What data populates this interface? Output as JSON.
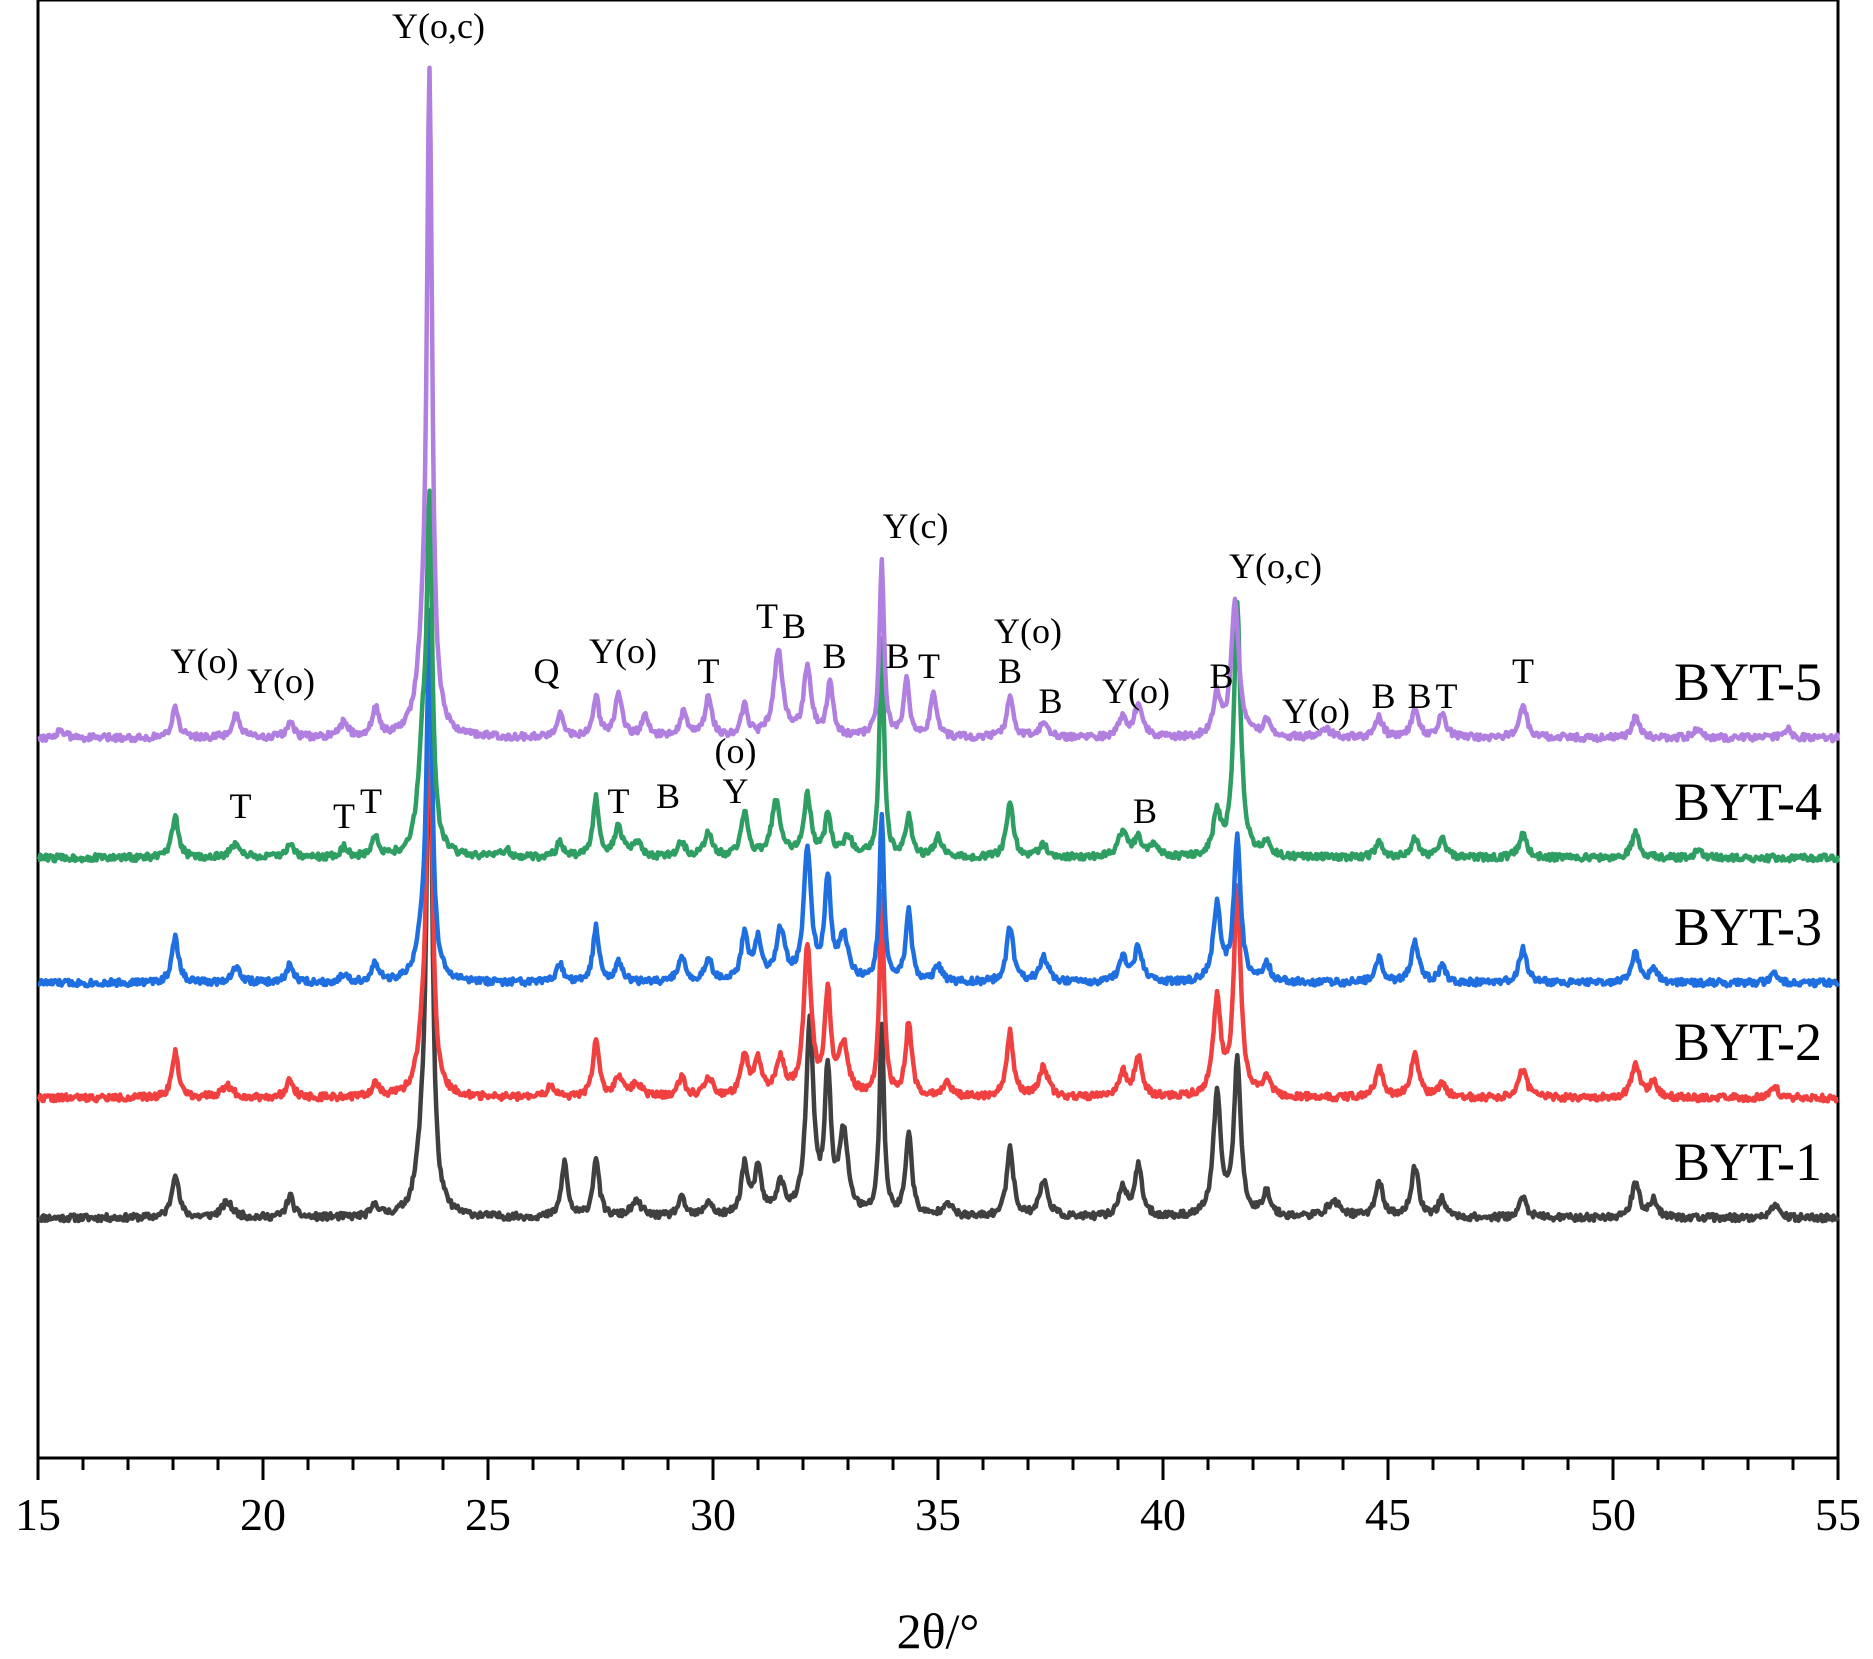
{
  "chart_data": {
    "type": "line",
    "title": "",
    "xlabel": "2θ/°",
    "ylabel": "",
    "xlim": [
      15,
      55
    ],
    "x_ticks": [
      15,
      20,
      25,
      30,
      35,
      40,
      45,
      50,
      55
    ],
    "x_tick_labels": [
      "15",
      "20",
      "25",
      "30",
      "35",
      "40",
      "45",
      "50",
      "55"
    ],
    "y_ticks_shown": false,
    "series": [
      {
        "name": "BYT-1",
        "color": "#404040",
        "baseline": 0,
        "noise_seed": 11,
        "peaks": [
          [
            18.05,
            45,
            0.09
          ],
          [
            19.2,
            15,
            0.15
          ],
          [
            20.6,
            22,
            0.09
          ],
          [
            22.5,
            12,
            0.09
          ],
          [
            23.7,
            530,
            0.07
          ],
          [
            23.55,
            60,
            0.15
          ],
          [
            26.7,
            55,
            0.08
          ],
          [
            27.4,
            60,
            0.08
          ],
          [
            28.3,
            15,
            0.15
          ],
          [
            29.3,
            18,
            0.1
          ],
          [
            29.9,
            15,
            0.1
          ],
          [
            30.7,
            50,
            0.09
          ],
          [
            31.0,
            45,
            0.1
          ],
          [
            31.5,
            30,
            0.12
          ],
          [
            32.15,
            190,
            0.1
          ],
          [
            32.55,
            140,
            0.08
          ],
          [
            32.9,
            80,
            0.12
          ],
          [
            33.75,
            190,
            0.06
          ],
          [
            34.35,
            85,
            0.08
          ],
          [
            35.2,
            15,
            0.12
          ],
          [
            36.6,
            70,
            0.09
          ],
          [
            37.35,
            35,
            0.12
          ],
          [
            39.1,
            30,
            0.1
          ],
          [
            39.45,
            50,
            0.1
          ],
          [
            41.2,
            120,
            0.1
          ],
          [
            41.65,
            155,
            0.09
          ],
          [
            42.3,
            25,
            0.1
          ],
          [
            43.8,
            15,
            0.2
          ],
          [
            44.8,
            35,
            0.1
          ],
          [
            45.6,
            50,
            0.1
          ],
          [
            46.2,
            18,
            0.1
          ],
          [
            48.0,
            20,
            0.1
          ],
          [
            50.5,
            35,
            0.1
          ],
          [
            50.9,
            18,
            0.1
          ],
          [
            53.6,
            12,
            0.1
          ]
        ]
      },
      {
        "name": "BYT-2",
        "color": "#f04040",
        "baseline": 120,
        "noise_seed": 22,
        "peaks": [
          [
            18.05,
            45,
            0.09
          ],
          [
            19.2,
            12,
            0.15
          ],
          [
            20.6,
            20,
            0.09
          ],
          [
            22.5,
            15,
            0.09
          ],
          [
            23.7,
            420,
            0.07
          ],
          [
            23.55,
            40,
            0.15
          ],
          [
            26.4,
            12,
            0.1
          ],
          [
            27.4,
            60,
            0.08
          ],
          [
            27.9,
            20,
            0.1
          ],
          [
            28.3,
            12,
            0.15
          ],
          [
            29.3,
            20,
            0.1
          ],
          [
            29.9,
            20,
            0.1
          ],
          [
            30.7,
            40,
            0.09
          ],
          [
            31.0,
            35,
            0.1
          ],
          [
            31.5,
            35,
            0.12
          ],
          [
            32.1,
            150,
            0.1
          ],
          [
            32.55,
            100,
            0.08
          ],
          [
            32.9,
            50,
            0.12
          ],
          [
            33.75,
            200,
            0.06
          ],
          [
            34.35,
            75,
            0.08
          ],
          [
            35.2,
            15,
            0.12
          ],
          [
            36.6,
            65,
            0.09
          ],
          [
            37.35,
            30,
            0.12
          ],
          [
            39.1,
            25,
            0.1
          ],
          [
            39.45,
            40,
            0.1
          ],
          [
            41.2,
            95,
            0.1
          ],
          [
            41.65,
            210,
            0.09
          ],
          [
            42.3,
            20,
            0.1
          ],
          [
            44.8,
            30,
            0.1
          ],
          [
            45.6,
            45,
            0.1
          ],
          [
            46.2,
            15,
            0.1
          ],
          [
            48.0,
            30,
            0.1
          ],
          [
            50.5,
            35,
            0.1
          ],
          [
            50.9,
            15,
            0.1
          ],
          [
            53.6,
            10,
            0.1
          ]
        ]
      },
      {
        "name": "BYT-3",
        "color": "#1f6fe0",
        "baseline": 235,
        "noise_seed": 33,
        "peaks": [
          [
            18.05,
            45,
            0.09
          ],
          [
            19.4,
            15,
            0.12
          ],
          [
            20.6,
            18,
            0.09
          ],
          [
            21.8,
            8,
            0.1
          ],
          [
            22.5,
            18,
            0.09
          ],
          [
            23.7,
            350,
            0.07
          ],
          [
            23.55,
            40,
            0.15
          ],
          [
            26.6,
            18,
            0.09
          ],
          [
            27.4,
            55,
            0.08
          ],
          [
            27.9,
            20,
            0.1
          ],
          [
            29.3,
            25,
            0.1
          ],
          [
            29.9,
            22,
            0.1
          ],
          [
            30.7,
            45,
            0.09
          ],
          [
            31.0,
            40,
            0.1
          ],
          [
            31.5,
            50,
            0.12
          ],
          [
            32.1,
            130,
            0.1
          ],
          [
            32.55,
            100,
            0.08
          ],
          [
            32.9,
            45,
            0.12
          ],
          [
            33.75,
            165,
            0.06
          ],
          [
            34.35,
            70,
            0.08
          ],
          [
            35.0,
            15,
            0.1
          ],
          [
            36.6,
            55,
            0.09
          ],
          [
            37.35,
            25,
            0.12
          ],
          [
            39.1,
            25,
            0.1
          ],
          [
            39.45,
            35,
            0.1
          ],
          [
            41.2,
            75,
            0.1
          ],
          [
            41.65,
            145,
            0.09
          ],
          [
            42.3,
            18,
            0.1
          ],
          [
            44.8,
            25,
            0.1
          ],
          [
            45.6,
            40,
            0.1
          ],
          [
            46.2,
            15,
            0.1
          ],
          [
            48.0,
            35,
            0.1
          ],
          [
            50.5,
            30,
            0.1
          ],
          [
            50.9,
            12,
            0.1
          ],
          [
            53.6,
            10,
            0.1
          ]
        ]
      },
      {
        "name": "BYT-4",
        "color": "#2e9e63",
        "baseline": 360,
        "noise_seed": 44,
        "peaks": [
          [
            18.05,
            40,
            0.09
          ],
          [
            19.4,
            15,
            0.12
          ],
          [
            20.6,
            15,
            0.09
          ],
          [
            21.8,
            10,
            0.1
          ],
          [
            22.5,
            20,
            0.09
          ],
          [
            23.7,
            330,
            0.07
          ],
          [
            23.55,
            100,
            0.12
          ],
          [
            25.4,
            8,
            0.1
          ],
          [
            26.6,
            15,
            0.09
          ],
          [
            27.4,
            60,
            0.08
          ],
          [
            27.9,
            30,
            0.1
          ],
          [
            28.3,
            15,
            0.12
          ],
          [
            29.3,
            15,
            0.1
          ],
          [
            29.9,
            25,
            0.1
          ],
          [
            30.7,
            45,
            0.09
          ],
          [
            31.4,
            55,
            0.12
          ],
          [
            32.1,
            60,
            0.1
          ],
          [
            32.55,
            40,
            0.08
          ],
          [
            33.0,
            20,
            0.12
          ],
          [
            33.75,
            220,
            0.06
          ],
          [
            34.35,
            40,
            0.08
          ],
          [
            35.0,
            20,
            0.1
          ],
          [
            36.6,
            55,
            0.09
          ],
          [
            37.35,
            12,
            0.12
          ],
          [
            39.1,
            25,
            0.12
          ],
          [
            39.45,
            20,
            0.1
          ],
          [
            39.8,
            12,
            0.1
          ],
          [
            41.2,
            40,
            0.1
          ],
          [
            41.65,
            250,
            0.09
          ],
          [
            42.3,
            15,
            0.1
          ],
          [
            44.8,
            15,
            0.1
          ],
          [
            45.6,
            20,
            0.1
          ],
          [
            46.2,
            20,
            0.1
          ],
          [
            48.0,
            25,
            0.1
          ],
          [
            50.5,
            25,
            0.1
          ],
          [
            51.9,
            8,
            0.1
          ]
        ]
      },
      {
        "name": "BYT-5",
        "color": "#b07fe0",
        "baseline": 480,
        "noise_seed": 55,
        "peaks": [
          [
            15.5,
            8,
            0.1
          ],
          [
            18.05,
            30,
            0.09
          ],
          [
            19.4,
            22,
            0.1
          ],
          [
            20.6,
            15,
            0.09
          ],
          [
            21.8,
            15,
            0.1
          ],
          [
            22.5,
            28,
            0.09
          ],
          [
            23.7,
            640,
            0.07
          ],
          [
            23.55,
            60,
            0.15
          ],
          [
            26.6,
            25,
            0.09
          ],
          [
            27.4,
            40,
            0.08
          ],
          [
            27.9,
            45,
            0.09
          ],
          [
            28.5,
            20,
            0.1
          ],
          [
            29.35,
            25,
            0.1
          ],
          [
            29.9,
            40,
            0.09
          ],
          [
            30.7,
            30,
            0.09
          ],
          [
            31.45,
            85,
            0.12
          ],
          [
            32.1,
            70,
            0.1
          ],
          [
            32.6,
            55,
            0.08
          ],
          [
            33.75,
            175,
            0.06
          ],
          [
            34.3,
            55,
            0.08
          ],
          [
            34.9,
            45,
            0.08
          ],
          [
            36.6,
            40,
            0.09
          ],
          [
            37.35,
            15,
            0.12
          ],
          [
            39.1,
            20,
            0.1
          ],
          [
            39.45,
            30,
            0.12
          ],
          [
            41.2,
            40,
            0.1
          ],
          [
            41.6,
            135,
            0.1
          ],
          [
            42.3,
            15,
            0.1
          ],
          [
            43.6,
            8,
            0.15
          ],
          [
            44.8,
            20,
            0.1
          ],
          [
            45.6,
            25,
            0.1
          ],
          [
            46.2,
            25,
            0.1
          ],
          [
            48.0,
            35,
            0.1
          ],
          [
            50.5,
            20,
            0.1
          ],
          [
            51.9,
            10,
            0.1
          ],
          [
            53.9,
            8,
            0.1
          ]
        ]
      }
    ],
    "series_labels": [
      {
        "text": "BYT-5",
        "series": "BYT-5"
      },
      {
        "text": "BYT-4",
        "series": "BYT-4"
      },
      {
        "text": "BYT-3",
        "series": "BYT-3"
      },
      {
        "text": "BYT-2",
        "series": "BYT-2"
      },
      {
        "text": "BYT-1",
        "series": "BYT-1"
      }
    ],
    "annotations": [
      {
        "text": "Y(o,c)",
        "x": 23.9,
        "series": "BYT-5",
        "lift": 700
      },
      {
        "text": "Y(o)",
        "x": 18.7,
        "series": "BYT-5",
        "lift": 65
      },
      {
        "text": "Y(o)",
        "x": 20.4,
        "series": "BYT-5",
        "lift": 45
      },
      {
        "text": "Q",
        "x": 26.3,
        "series": "BYT-5",
        "lift": 55
      },
      {
        "text": "Y(o)",
        "x": 28.0,
        "series": "BYT-5",
        "lift": 75
      },
      {
        "text": "T",
        "x": 29.9,
        "series": "BYT-5",
        "lift": 55
      },
      {
        "text": "T",
        "x": 31.2,
        "series": "BYT-5",
        "lift": 110
      },
      {
        "text": "B",
        "x": 31.8,
        "series": "BYT-5",
        "lift": 100
      },
      {
        "text": "B",
        "x": 32.7,
        "series": "BYT-5",
        "lift": 70
      },
      {
        "text": "B",
        "x": 34.1,
        "series": "BYT-5",
        "lift": 70
      },
      {
        "text": "T",
        "x": 34.8,
        "series": "BYT-5",
        "lift": 60
      },
      {
        "text": "Y(c)",
        "x": 34.5,
        "series": "BYT-5",
        "lift": 200
      },
      {
        "text": "Y(o)",
        "x": 37.0,
        "series": "BYT-5",
        "lift": 95
      },
      {
        "text": "B",
        "x": 36.6,
        "series": "BYT-5",
        "lift": 55
      },
      {
        "text": "B",
        "x": 37.5,
        "series": "BYT-5",
        "lift": 25
      },
      {
        "text": "Y(o)",
        "x": 39.4,
        "series": "BYT-5",
        "lift": 35
      },
      {
        "text": "B",
        "x": 41.3,
        "series": "BYT-5",
        "lift": 50
      },
      {
        "text": "Y(o,c)",
        "x": 42.5,
        "series": "BYT-5",
        "lift": 160
      },
      {
        "text": "Y(o)",
        "x": 43.4,
        "series": "BYT-5",
        "lift": 15
      },
      {
        "text": "B",
        "x": 44.9,
        "series": "BYT-5",
        "lift": 30
      },
      {
        "text": "B",
        "x": 45.7,
        "series": "BYT-5",
        "lift": 30
      },
      {
        "text": "T",
        "x": 46.3,
        "series": "BYT-5",
        "lift": 30
      },
      {
        "text": "T",
        "x": 48.0,
        "series": "BYT-5",
        "lift": 55
      },
      {
        "text": "(o)",
        "x": 30.5,
        "series": "BYT-4",
        "lift": 95
      },
      {
        "text": "Y",
        "x": 30.5,
        "series": "BYT-4",
        "lift": 55
      },
      {
        "text": "T",
        "x": 19.5,
        "series": "BYT-4",
        "lift": 40
      },
      {
        "text": "T",
        "x": 21.8,
        "series": "BYT-4",
        "lift": 30
      },
      {
        "text": "T",
        "x": 22.4,
        "series": "BYT-4",
        "lift": 45
      },
      {
        "text": "T",
        "x": 27.9,
        "series": "BYT-4",
        "lift": 45
      },
      {
        "text": "B",
        "x": 29.0,
        "series": "BYT-4",
        "lift": 50
      },
      {
        "text": "B",
        "x": 39.6,
        "series": "BYT-4",
        "lift": 35
      }
    ]
  }
}
